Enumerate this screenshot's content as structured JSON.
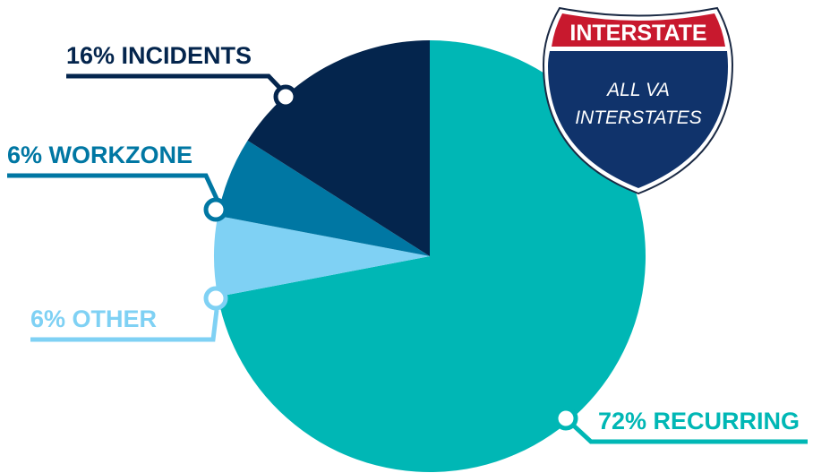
{
  "chart_data": {
    "type": "pie",
    "categories": [
      "RECURRING",
      "OTHER",
      "WORKZONE",
      "INCIDENTS"
    ],
    "values": [
      72,
      6,
      6,
      16
    ],
    "labels": [
      "72% RECURRING",
      "6% OTHER",
      "6% WORKZONE",
      "16% INCIDENTS"
    ],
    "colors": [
      "#00b7b5",
      "#7fd1f4",
      "#0077a3",
      "#04254d"
    ]
  },
  "shield": {
    "top_text": "INTERSTATE",
    "line1": "ALL VA",
    "line2": "INTERSTATES",
    "colors": {
      "top": "#c8192e",
      "body": "#10336b",
      "outline": "#ffffff"
    }
  }
}
